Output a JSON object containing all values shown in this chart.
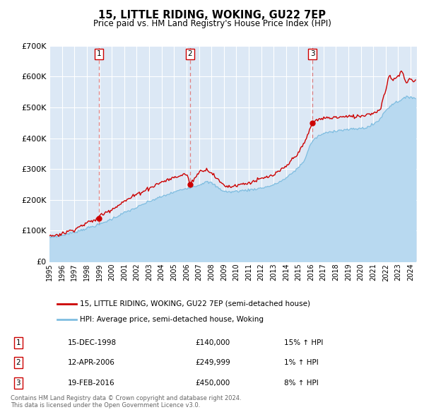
{
  "title": "15, LITTLE RIDING, WOKING, GU22 7EP",
  "subtitle": "Price paid vs. HM Land Registry's House Price Index (HPI)",
  "ylim": [
    0,
    700000
  ],
  "xlim_start": 1995.0,
  "xlim_end": 2024.5,
  "yticks": [
    0,
    100000,
    200000,
    300000,
    400000,
    500000,
    600000,
    700000
  ],
  "ytick_labels": [
    "£0",
    "£100K",
    "£200K",
    "£300K",
    "£400K",
    "£500K",
    "£600K",
    "£700K"
  ],
  "xticks": [
    1995,
    1996,
    1997,
    1998,
    1999,
    2000,
    2001,
    2002,
    2003,
    2004,
    2005,
    2006,
    2007,
    2008,
    2009,
    2010,
    2011,
    2012,
    2013,
    2014,
    2015,
    2016,
    2017,
    2018,
    2019,
    2020,
    2021,
    2022,
    2023,
    2024
  ],
  "sale_dates": [
    1998.958,
    2006.286,
    2016.123
  ],
  "sale_prices": [
    140000,
    249999,
    450000
  ],
  "sale_labels": [
    "1",
    "2",
    "3"
  ],
  "sale_date_strings": [
    "15-DEC-1998",
    "12-APR-2006",
    "19-FEB-2016"
  ],
  "sale_price_strings": [
    "£140,000",
    "£249,999",
    "£450,000"
  ],
  "sale_hpi_strings": [
    "15% ↑ HPI",
    "1% ↑ HPI",
    "8% ↑ HPI"
  ],
  "hpi_color": "#7fbde0",
  "hpi_fill_color": "#b8d9f0",
  "price_color": "#cc0000",
  "vline_color": "#e08080",
  "background_color": "#ffffff",
  "plot_bg_color": "#dce8f5",
  "grid_color": "#ffffff",
  "footer_text": "Contains HM Land Registry data © Crown copyright and database right 2024.\nThis data is licensed under the Open Government Licence v3.0.",
  "legend1_label": "15, LITTLE RIDING, WOKING, GU22 7EP (semi-detached house)",
  "legend2_label": "HPI: Average price, semi-detached house, Woking",
  "hpi_anchors_y": [
    1995,
    1996,
    1997,
    1998,
    1999,
    2000,
    2001,
    2002,
    2003,
    2004,
    2005,
    2006,
    2007,
    2007.5,
    2008,
    2008.5,
    2009,
    2009.5,
    2010,
    2011,
    2012,
    2013,
    2014,
    2015,
    2015.5,
    2016,
    2016.5,
    2017,
    2018,
    2019,
    2020,
    2020.5,
    2021,
    2021.5,
    2022,
    2022.5,
    2023,
    2023.5,
    2024,
    2024.4
  ],
  "hpi_anchors_v": [
    78000,
    85000,
    95000,
    108000,
    120000,
    138000,
    158000,
    175000,
    195000,
    210000,
    225000,
    238000,
    248000,
    258000,
    255000,
    240000,
    228000,
    225000,
    228000,
    232000,
    238000,
    248000,
    270000,
    305000,
    330000,
    385000,
    405000,
    415000,
    425000,
    428000,
    432000,
    435000,
    445000,
    460000,
    490000,
    510000,
    520000,
    530000,
    535000,
    530000
  ],
  "price_anchors_y": [
    1995,
    1996,
    1997,
    1998,
    1998.96,
    1999,
    2000,
    2001,
    2002,
    2003,
    2004,
    2005,
    2006,
    2006.29,
    2007,
    2007.5,
    2008,
    2008.5,
    2009,
    2009.5,
    2010,
    2011,
    2012,
    2013,
    2014,
    2015,
    2015.5,
    2016,
    2016.12,
    2016.5,
    2017,
    2018,
    2019,
    2020,
    2020.5,
    2021,
    2021.5,
    2022,
    2022.3,
    2022.5,
    2023,
    2023.3,
    2023.6,
    2024,
    2024.4
  ],
  "price_anchors_v": [
    82000,
    90000,
    105000,
    125000,
    140000,
    148000,
    170000,
    195000,
    218000,
    238000,
    258000,
    272000,
    285000,
    250000,
    290000,
    300000,
    290000,
    265000,
    248000,
    242000,
    248000,
    255000,
    268000,
    280000,
    308000,
    355000,
    385000,
    440000,
    450000,
    460000,
    465000,
    468000,
    470000,
    472000,
    478000,
    482000,
    490000,
    555000,
    610000,
    590000,
    600000,
    620000,
    580000,
    590000,
    585000
  ]
}
